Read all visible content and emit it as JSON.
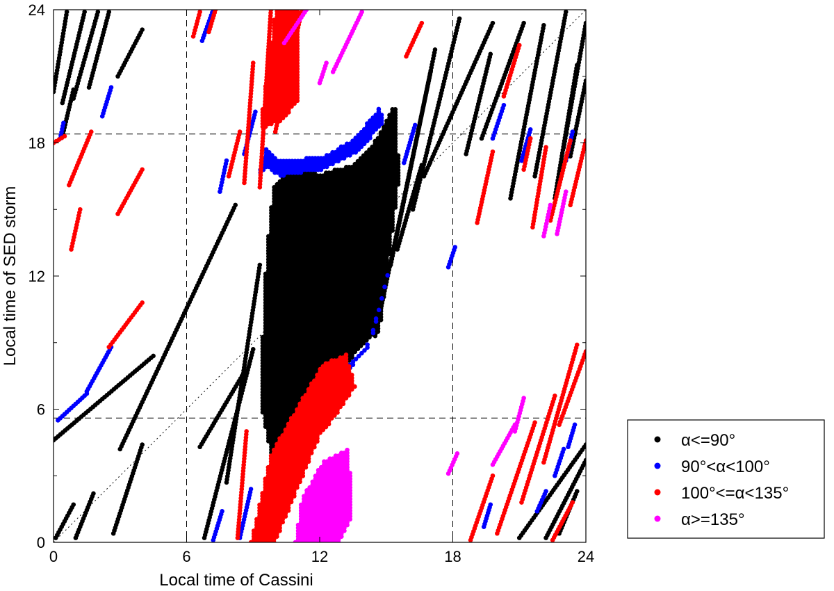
{
  "chart_data": {
    "type": "scatter",
    "title": "",
    "xlabel": "Local time of Cassini",
    "ylabel": "Local time of SED storm",
    "xlim": [
      0,
      24
    ],
    "ylim": [
      0,
      24
    ],
    "xticks": [
      0,
      6,
      12,
      18,
      24
    ],
    "yticks": [
      0,
      6,
      12,
      18,
      24
    ],
    "xtick_labels": [
      "0",
      "6",
      "12",
      "18",
      "24"
    ],
    "ytick_labels": [
      "0",
      "6",
      "12",
      "18",
      "24"
    ],
    "legend_position": "outside-bottom-right",
    "reference_lines": {
      "vertical_dashed": [
        6,
        18
      ],
      "horizontal_dashed": [
        5.6,
        18.4
      ],
      "diagonal_dotted": [
        [
          0,
          0
        ],
        [
          24,
          24
        ]
      ]
    },
    "series": [
      {
        "name": "α<=90°",
        "color": "#000000",
        "tracks": [
          {
            "x": [
              0.1,
              0.9
            ],
            "y": [
              0.2,
              1.7
            ]
          },
          {
            "x": [
              1.0,
              1.8
            ],
            "y": [
              0.2,
              2.2
            ]
          },
          {
            "x": [
              2.7,
              4.0
            ],
            "y": [
              0.4,
              4.4
            ]
          },
          {
            "x": [
              0.0,
              0.6
            ],
            "y": [
              20.3,
              23.9
            ]
          },
          {
            "x": [
              0.4,
              1.4
            ],
            "y": [
              19.8,
              23.9
            ]
          },
          {
            "x": [
              0.9,
              2.0
            ],
            "y": [
              20.0,
              23.9
            ]
          },
          {
            "x": [
              1.6,
              2.5
            ],
            "y": [
              20.5,
              23.9
            ]
          },
          {
            "x": [
              0.4,
              0.9
            ],
            "y": [
              18.3,
              20.4
            ]
          },
          {
            "x": [
              2.9,
              4.0
            ],
            "y": [
              21.0,
              23.1
            ]
          },
          {
            "x": [
              0.0,
              4.5
            ],
            "y": [
              4.6,
              8.4
            ]
          },
          {
            "x": [
              3.0,
              8.2
            ],
            "y": [
              4.2,
              15.2
            ]
          },
          {
            "x": [
              6.6,
              8.5
            ],
            "y": [
              4.3,
              7.5
            ]
          },
          {
            "x": [
              6.8,
              9.0
            ],
            "y": [
              0.2,
              8.7
            ]
          },
          {
            "x": [
              7.8,
              9.3
            ],
            "y": [
              2.7,
              12.5
            ]
          },
          {
            "x": [
              14.5,
              17.0
            ],
            "y": [
              9.3,
              21.2
            ]
          },
          {
            "x": [
              15.2,
              17.2
            ],
            "y": [
              12.5,
              22.2
            ]
          },
          {
            "x": [
              15.5,
              16.6
            ],
            "y": [
              13.2,
              17.0
            ]
          },
          {
            "x": [
              16.2,
              18.3
            ],
            "y": [
              15.0,
              23.6
            ]
          },
          {
            "x": [
              16.7,
              19.8
            ],
            "y": [
              16.5,
              23.4
            ]
          },
          {
            "x": [
              18.6,
              19.7
            ],
            "y": [
              17.5,
              22.0
            ]
          },
          {
            "x": [
              19.3,
              21.2
            ],
            "y": [
              18.2,
              23.4
            ]
          },
          {
            "x": [
              20.6,
              22.1
            ],
            "y": [
              15.5,
              23.3
            ]
          },
          {
            "x": [
              21.7,
              23.1
            ],
            "y": [
              16.5,
              23.9
            ]
          },
          {
            "x": [
              22.6,
              23.6
            ],
            "y": [
              15.5,
              21.5
            ]
          },
          {
            "x": [
              23.0,
              24.0
            ],
            "y": [
              17.8,
              23.4
            ]
          },
          {
            "x": [
              23.3,
              24.0
            ],
            "y": [
              17.4,
              20.8
            ]
          },
          {
            "x": [
              21.0,
              24.0
            ],
            "y": [
              0.2,
              4.4
            ]
          },
          {
            "x": [
              22.2,
              24.0
            ],
            "y": [
              0.2,
              3.7
            ]
          },
          {
            "x": [
              22.8,
              23.6
            ],
            "y": [
              0.4,
              2.3
            ]
          }
        ],
        "regions": [
          {
            "x": [
              9.3,
              10.0,
              12.2,
              13.8,
              14.7,
              15.6,
              15.4,
              14.6,
              13.5,
              12.0,
              10.8,
              9.9,
              9.6,
              9.3
            ],
            "y": [
              6.5,
              3.0,
              6.5,
              8.8,
              9.5,
              16.5,
              19.8,
              18.2,
              17.0,
              16.6,
              16.9,
              16.0,
              13.0,
              6.5
            ]
          }
        ]
      },
      {
        "name": "90°<α<100°",
        "color": "#0000ff",
        "tracks": [
          {
            "x": [
              0.3,
              0.45
            ],
            "y": [
              18.2,
              18.9
            ]
          },
          {
            "x": [
              2.2,
              2.6
            ],
            "y": [
              19.2,
              20.5
            ]
          },
          {
            "x": [
              0.2,
              1.5
            ],
            "y": [
              5.5,
              6.7
            ]
          },
          {
            "x": [
              1.5,
              2.6
            ],
            "y": [
              6.8,
              8.8
            ]
          },
          {
            "x": [
              6.7,
              7.2
            ],
            "y": [
              22.6,
              24.0
            ]
          },
          {
            "x": [
              7.5,
              7.8
            ],
            "y": [
              15.8,
              17.2
            ]
          },
          {
            "x": [
              7.2,
              7.6
            ],
            "y": [
              0.1,
              1.4
            ]
          },
          {
            "x": [
              8.6,
              9.1
            ],
            "y": [
              17.5,
              19.4
            ]
          },
          {
            "x": [
              8.4,
              8.9
            ],
            "y": [
              0.2,
              2.4
            ]
          },
          {
            "x": [
              15.8,
              16.3
            ],
            "y": [
              17.1,
              18.8
            ]
          },
          {
            "x": [
              17.8,
              18.1
            ],
            "y": [
              12.4,
              13.3
            ]
          },
          {
            "x": [
              19.4,
              19.7
            ],
            "y": [
              0.7,
              1.7
            ]
          },
          {
            "x": [
              19.8,
              20.3
            ],
            "y": [
              18.2,
              19.7
            ]
          },
          {
            "x": [
              21.1,
              21.5
            ],
            "y": [
              17.2,
              18.6
            ]
          },
          {
            "x": [
              23.1,
              23.4
            ],
            "y": [
              17.2,
              18.5
            ]
          },
          {
            "x": [
              21.8,
              22.2
            ],
            "y": [
              1.4,
              2.3
            ]
          },
          {
            "x": [
              22.6,
              23.0
            ],
            "y": [
              3.0,
              4.2
            ]
          },
          {
            "x": [
              23.2,
              23.5
            ],
            "y": [
              4.3,
              5.3
            ]
          }
        ],
        "regions": [
          {
            "x": [
              9.2,
              9.6,
              10.2,
              12.2,
              13.6,
              14.7,
              14.9,
              13.8,
              12.2,
              10.2,
              9.6,
              9.2
            ],
            "y": [
              16.4,
              17.8,
              17.2,
              17.4,
              18.2,
              19.6,
              19.0,
              17.6,
              16.8,
              16.5,
              16.9,
              16.4
            ]
          },
          {
            "x": [
              9.6,
              10.2,
              12.2,
              14.4,
              15.2,
              14.2,
              12.0,
              10.0,
              9.6
            ],
            "y": [
              3.2,
              2.8,
              6.0,
              9.3,
              12.6,
              8.8,
              6.8,
              3.8,
              3.2
            ]
          }
        ]
      },
      {
        "name": "100°<=α<135°",
        "color": "#ff0000",
        "tracks": [
          {
            "x": [
              0.0,
              0.5
            ],
            "y": [
              18.0,
              18.3
            ]
          },
          {
            "x": [
              0.7,
              1.7
            ],
            "y": [
              16.1,
              18.5
            ]
          },
          {
            "x": [
              2.9,
              4.0
            ],
            "y": [
              14.8,
              16.8
            ]
          },
          {
            "x": [
              0.8,
              1.2
            ],
            "y": [
              13.2,
              15.0
            ]
          },
          {
            "x": [
              2.5,
              4.0
            ],
            "y": [
              8.8,
              10.8
            ]
          },
          {
            "x": [
              6.3,
              6.6
            ],
            "y": [
              22.8,
              23.9
            ]
          },
          {
            "x": [
              7.0,
              7.3
            ],
            "y": [
              23.0,
              24.0
            ]
          },
          {
            "x": [
              8.6,
              9.0
            ],
            "y": [
              16.2,
              21.6
            ]
          },
          {
            "x": [
              7.9,
              8.4
            ],
            "y": [
              16.5,
              18.5
            ]
          },
          {
            "x": [
              9.3,
              9.8
            ],
            "y": [
              16.0,
              24.0
            ]
          },
          {
            "x": [
              10.0,
              11.2
            ],
            "y": [
              18.5,
              24.0
            ]
          },
          {
            "x": [
              8.3,
              8.7
            ],
            "y": [
              0.2,
              5.0
            ]
          },
          {
            "x": [
              15.9,
              16.6
            ],
            "y": [
              21.9,
              23.4
            ]
          },
          {
            "x": [
              19.1,
              19.8
            ],
            "y": [
              14.4,
              17.6
            ]
          },
          {
            "x": [
              20.3,
              21.0
            ],
            "y": [
              20.1,
              22.4
            ]
          },
          {
            "x": [
              21.2,
              21.5
            ],
            "y": [
              16.8,
              18.2
            ]
          },
          {
            "x": [
              21.6,
              22.2
            ],
            "y": [
              14.2,
              17.8
            ]
          },
          {
            "x": [
              22.4,
              23.3
            ],
            "y": [
              14.5,
              18.1
            ]
          },
          {
            "x": [
              23.3,
              24.0
            ],
            "y": [
              15.2,
              18.1
            ]
          },
          {
            "x": [
              18.8,
              19.8
            ],
            "y": [
              0.1,
              3.0
            ]
          },
          {
            "x": [
              20.0,
              21.7
            ],
            "y": [
              0.4,
              5.4
            ]
          },
          {
            "x": [
              21.1,
              22.6
            ],
            "y": [
              1.8,
              6.6
            ]
          },
          {
            "x": [
              22.1,
              23.6
            ],
            "y": [
              3.6,
              8.9
            ]
          },
          {
            "x": [
              22.8,
              24.0
            ],
            "y": [
              5.3,
              8.6
            ]
          },
          {
            "x": [
              22.5,
              23.4
            ],
            "y": [
              0.1,
              1.8
            ]
          }
        ],
        "regions": [
          {
            "x": [
              9.3,
              10.3,
              11.1,
              11.1,
              10.6,
              10.0,
              9.3
            ],
            "y": [
              18.6,
              19.0,
              20.0,
              24.0,
              24.0,
              24.0,
              18.6
            ]
          },
          {
            "x": [
              8.9,
              9.8,
              12.1,
              13.2,
              13.6,
              12.8,
              12.0,
              10.0,
              9.4,
              8.9
            ],
            "y": [
              0.0,
              4.0,
              8.0,
              8.5,
              7.0,
              5.8,
              4.8,
              0.0,
              0.0,
              0.0
            ]
          }
        ]
      },
      {
        "name": "α>=135°",
        "color": "#ff00ff",
        "tracks": [
          {
            "x": [
              10.4,
              11.4
            ],
            "y": [
              22.5,
              24.0
            ]
          },
          {
            "x": [
              12.6,
              13.9
            ],
            "y": [
              21.2,
              23.9
            ]
          },
          {
            "x": [
              12.0,
              12.3
            ],
            "y": [
              20.7,
              21.6
            ]
          },
          {
            "x": [
              17.8,
              18.2
            ],
            "y": [
              3.1,
              4.0
            ]
          },
          {
            "x": [
              19.8,
              20.8
            ],
            "y": [
              3.5,
              5.3
            ]
          },
          {
            "x": [
              20.8,
              21.2
            ],
            "y": [
              5.0,
              6.5
            ]
          },
          {
            "x": [
              22.1,
              22.4
            ],
            "y": [
              13.8,
              15.2
            ]
          },
          {
            "x": [
              22.7,
              23.1
            ],
            "y": [
              13.9,
              15.8
            ]
          }
        ],
        "regions": [
          {
            "x": [
              10.9,
              11.8,
              12.9,
              13.5,
              13.3,
              12.2,
              11.2,
              10.9
            ],
            "y": [
              0.0,
              0.0,
              0.0,
              1.2,
              4.2,
              3.7,
              2.0,
              0.0
            ]
          }
        ]
      }
    ]
  }
}
